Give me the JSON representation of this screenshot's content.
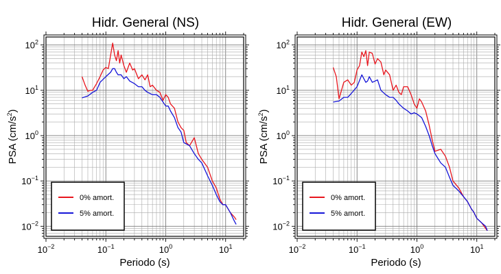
{
  "chart_data": [
    {
      "type": "line",
      "title": "Hidr. General (NS)",
      "xlabel": "Periodo (s)",
      "ylabel": {
        "base": "PSA (cm/s",
        "sup": "2",
        "tail": ")"
      },
      "xscale": "log",
      "yscale": "log",
      "xlim": [
        0.01,
        20
      ],
      "ylim": [
        0.006,
        150
      ],
      "grid": true,
      "legend_position": "bottom-left",
      "xticks": [
        {
          "value": 0.01,
          "base": "10",
          "exp": "−2"
        },
        {
          "value": 0.1,
          "base": "10",
          "exp": "−1"
        },
        {
          "value": 1,
          "base": "10",
          "exp": "0"
        },
        {
          "value": 10,
          "base": "10",
          "exp": "1"
        }
      ],
      "yticks": [
        {
          "value": 0.01,
          "base": "10",
          "exp": "−2"
        },
        {
          "value": 0.1,
          "base": "10",
          "exp": "−1"
        },
        {
          "value": 1,
          "base": "10",
          "exp": "0"
        },
        {
          "value": 10,
          "base": "10",
          "exp": "1"
        },
        {
          "value": 100,
          "base": "10",
          "exp": "2"
        }
      ],
      "series": [
        {
          "name": "0% amort.",
          "color": "#e8141c",
          "x": [
            0.04,
            0.045,
            0.05,
            0.055,
            0.06,
            0.07,
            0.08,
            0.09,
            0.1,
            0.11,
            0.12,
            0.13,
            0.14,
            0.15,
            0.16,
            0.17,
            0.18,
            0.2,
            0.22,
            0.25,
            0.28,
            0.3,
            0.35,
            0.4,
            0.45,
            0.5,
            0.55,
            0.6,
            0.7,
            0.8,
            0.9,
            1.0,
            1.1,
            1.2,
            1.4,
            1.6,
            1.8,
            2.0,
            2.2,
            2.5,
            3.0,
            3.5,
            4.0,
            5.0,
            6.0,
            7.0,
            8.0,
            9.0,
            10.0,
            12.0,
            14.0,
            15.0
          ],
          "y": [
            20,
            13,
            9.5,
            10,
            10,
            14,
            20,
            28,
            32,
            30,
            60,
            110,
            60,
            45,
            75,
            40,
            60,
            35,
            25,
            40,
            28,
            30,
            18,
            22,
            17,
            22,
            12,
            13,
            10,
            9,
            6,
            8,
            7,
            5,
            4,
            2,
            1.5,
            1.3,
            0.7,
            0.6,
            0.9,
            0.4,
            0.3,
            0.2,
            0.1,
            0.07,
            0.04,
            0.03,
            0.03,
            0.02,
            0.016,
            0.014
          ]
        },
        {
          "name": "5% amort.",
          "color": "#1414d8",
          "x": [
            0.04,
            0.05,
            0.06,
            0.07,
            0.08,
            0.1,
            0.12,
            0.13,
            0.14,
            0.15,
            0.16,
            0.18,
            0.2,
            0.22,
            0.25,
            0.3,
            0.35,
            0.4,
            0.45,
            0.5,
            0.6,
            0.7,
            0.8,
            1.0,
            1.1,
            1.2,
            1.4,
            1.6,
            1.8,
            2.0,
            2.5,
            3.0,
            3.5,
            4.0,
            5.0,
            6.0,
            7.0,
            8.0,
            9.0,
            10.0,
            12.0,
            14.0,
            15.0
          ],
          "y": [
            6.8,
            7.5,
            9,
            10,
            15,
            20,
            25,
            30,
            30,
            25,
            22,
            22,
            18,
            20,
            16,
            14,
            12,
            12,
            10,
            9,
            8,
            8,
            7,
            4.5,
            4.5,
            3.5,
            2.5,
            1.5,
            1.2,
            0.7,
            0.6,
            0.4,
            0.3,
            0.25,
            0.13,
            0.08,
            0.05,
            0.035,
            0.03,
            0.03,
            0.02,
            0.013,
            0.011
          ]
        }
      ]
    },
    {
      "type": "line",
      "title": "Hidr. General (EW)",
      "xlabel": "Periodo (s)",
      "ylabel": {
        "base": "PSA (cm/s",
        "sup": "2",
        "tail": ")"
      },
      "xscale": "log",
      "yscale": "log",
      "xlim": [
        0.01,
        20
      ],
      "ylim": [
        0.006,
        150
      ],
      "grid": true,
      "legend_position": "bottom-left",
      "xticks": [
        {
          "value": 0.01,
          "base": "10",
          "exp": "−2"
        },
        {
          "value": 0.1,
          "base": "10",
          "exp": "−1"
        },
        {
          "value": 1,
          "base": "10",
          "exp": "0"
        },
        {
          "value": 10,
          "base": "10",
          "exp": "1"
        }
      ],
      "yticks": [
        {
          "value": 0.01,
          "base": "10",
          "exp": "−2"
        },
        {
          "value": 0.1,
          "base": "10",
          "exp": "−1"
        },
        {
          "value": 1,
          "base": "10",
          "exp": "0"
        },
        {
          "value": 10,
          "base": "10",
          "exp": "1"
        },
        {
          "value": 100,
          "base": "10",
          "exp": "2"
        }
      ],
      "series": [
        {
          "name": "0% amort.",
          "color": "#e8141c",
          "x": [
            0.04,
            0.045,
            0.05,
            0.055,
            0.06,
            0.07,
            0.08,
            0.09,
            0.1,
            0.11,
            0.12,
            0.13,
            0.14,
            0.15,
            0.16,
            0.18,
            0.2,
            0.22,
            0.25,
            0.28,
            0.3,
            0.35,
            0.4,
            0.45,
            0.5,
            0.55,
            0.6,
            0.7,
            0.8,
            0.9,
            1.0,
            1.1,
            1.2,
            1.4,
            1.6,
            1.8,
            2.0,
            2.5,
            3.0,
            3.5,
            4.0,
            5.0,
            6.0,
            7.0,
            8.0,
            9.0,
            10.0,
            12.0,
            14.0,
            15.0
          ],
          "y": [
            32,
            20,
            6.5,
            10,
            15,
            17,
            13,
            15,
            28,
            35,
            70,
            55,
            75,
            35,
            70,
            65,
            38,
            50,
            42,
            22,
            28,
            22,
            10,
            13,
            9,
            8,
            12,
            12,
            8,
            5,
            4,
            6.5,
            5.5,
            3.5,
            1.7,
            0.8,
            0.45,
            0.5,
            0.35,
            0.2,
            0.1,
            0.07,
            0.045,
            0.035,
            0.025,
            0.02,
            0.015,
            0.012,
            0.009,
            0.008
          ]
        },
        {
          "name": "5% amort.",
          "color": "#1414d8",
          "x": [
            0.04,
            0.05,
            0.06,
            0.07,
            0.08,
            0.1,
            0.12,
            0.13,
            0.14,
            0.15,
            0.16,
            0.18,
            0.2,
            0.22,
            0.25,
            0.3,
            0.35,
            0.4,
            0.45,
            0.5,
            0.6,
            0.7,
            0.8,
            0.9,
            1.0,
            1.2,
            1.4,
            1.6,
            1.8,
            2.0,
            2.5,
            3.0,
            3.5,
            4.0,
            5.0,
            6.0,
            7.0,
            8.0,
            9.0,
            10.0,
            12.0,
            14.0,
            15.0
          ],
          "y": [
            5.5,
            5.8,
            7,
            7,
            8.5,
            12,
            22,
            18,
            15,
            16,
            20,
            15,
            16,
            17,
            10,
            8,
            7,
            7,
            6,
            5,
            4,
            3.5,
            3,
            3.2,
            3,
            2.5,
            1.6,
            1.0,
            0.6,
            0.4,
            0.25,
            0.2,
            0.12,
            0.08,
            0.06,
            0.045,
            0.035,
            0.025,
            0.02,
            0.015,
            0.012,
            0.01,
            0.008
          ]
        }
      ]
    }
  ]
}
